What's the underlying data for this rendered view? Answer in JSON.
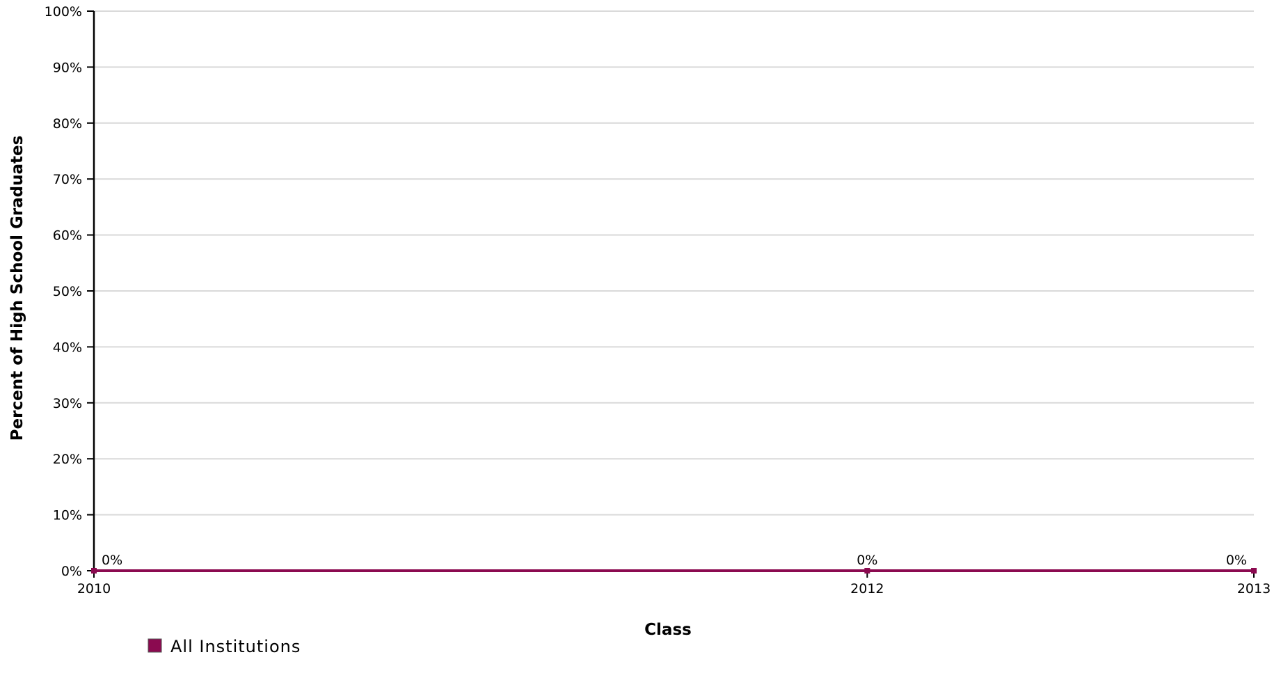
{
  "chart_data": {
    "type": "line",
    "xlabel": "Class",
    "ylabel": "Percent of High School Graduates",
    "x": [
      2010,
      2012,
      2013
    ],
    "xtick_labels": [
      "2010",
      "2012",
      "2013"
    ],
    "ylim": [
      0,
      100
    ],
    "yticks": [
      0,
      10,
      20,
      30,
      40,
      50,
      60,
      70,
      80,
      90,
      100
    ],
    "ytick_labels": [
      "0%",
      "10%",
      "20%",
      "30%",
      "40%",
      "50%",
      "60%",
      "70%",
      "80%",
      "90%",
      "100%"
    ],
    "grid": true,
    "legend_position": "bottom-left",
    "series": [
      {
        "name": "All Institutions",
        "color": "#8B0A50",
        "values": [
          0,
          0,
          0
        ],
        "data_labels": [
          "0%",
          "0%",
          "0%"
        ]
      }
    ]
  }
}
